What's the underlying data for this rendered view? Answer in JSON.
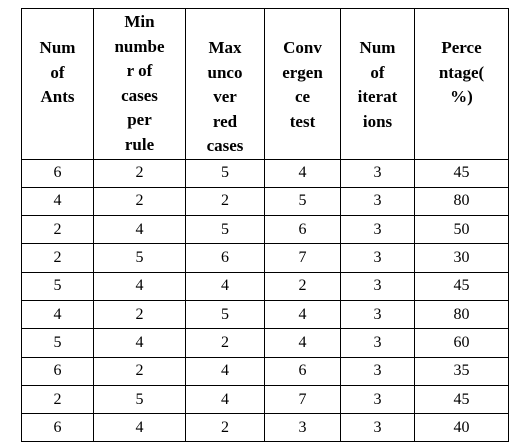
{
  "table": {
    "header": [
      [
        "Num",
        "of",
        "Ants"
      ],
      [
        "Min",
        "numbe",
        "r of",
        "cases",
        "per",
        "rule"
      ],
      [
        "Max",
        "unco",
        "ver",
        "red",
        "cases"
      ],
      [
        "Conv",
        "ergen",
        "ce",
        "test"
      ],
      [
        "Num",
        "of",
        "iterat",
        "ions"
      ],
      [
        "Perce",
        "ntage(",
        "%)"
      ]
    ],
    "rows": [
      [
        6,
        2,
        5,
        4,
        3,
        45
      ],
      [
        4,
        2,
        2,
        5,
        3,
        80
      ],
      [
        2,
        4,
        5,
        6,
        3,
        50
      ],
      [
        2,
        5,
        6,
        7,
        3,
        30
      ],
      [
        5,
        4,
        4,
        2,
        3,
        45
      ],
      [
        4,
        2,
        5,
        4,
        3,
        80
      ],
      [
        5,
        4,
        2,
        4,
        3,
        60
      ],
      [
        6,
        2,
        4,
        6,
        3,
        35
      ],
      [
        2,
        5,
        4,
        7,
        3,
        45
      ],
      [
        6,
        4,
        2,
        3,
        3,
        40
      ]
    ]
  }
}
